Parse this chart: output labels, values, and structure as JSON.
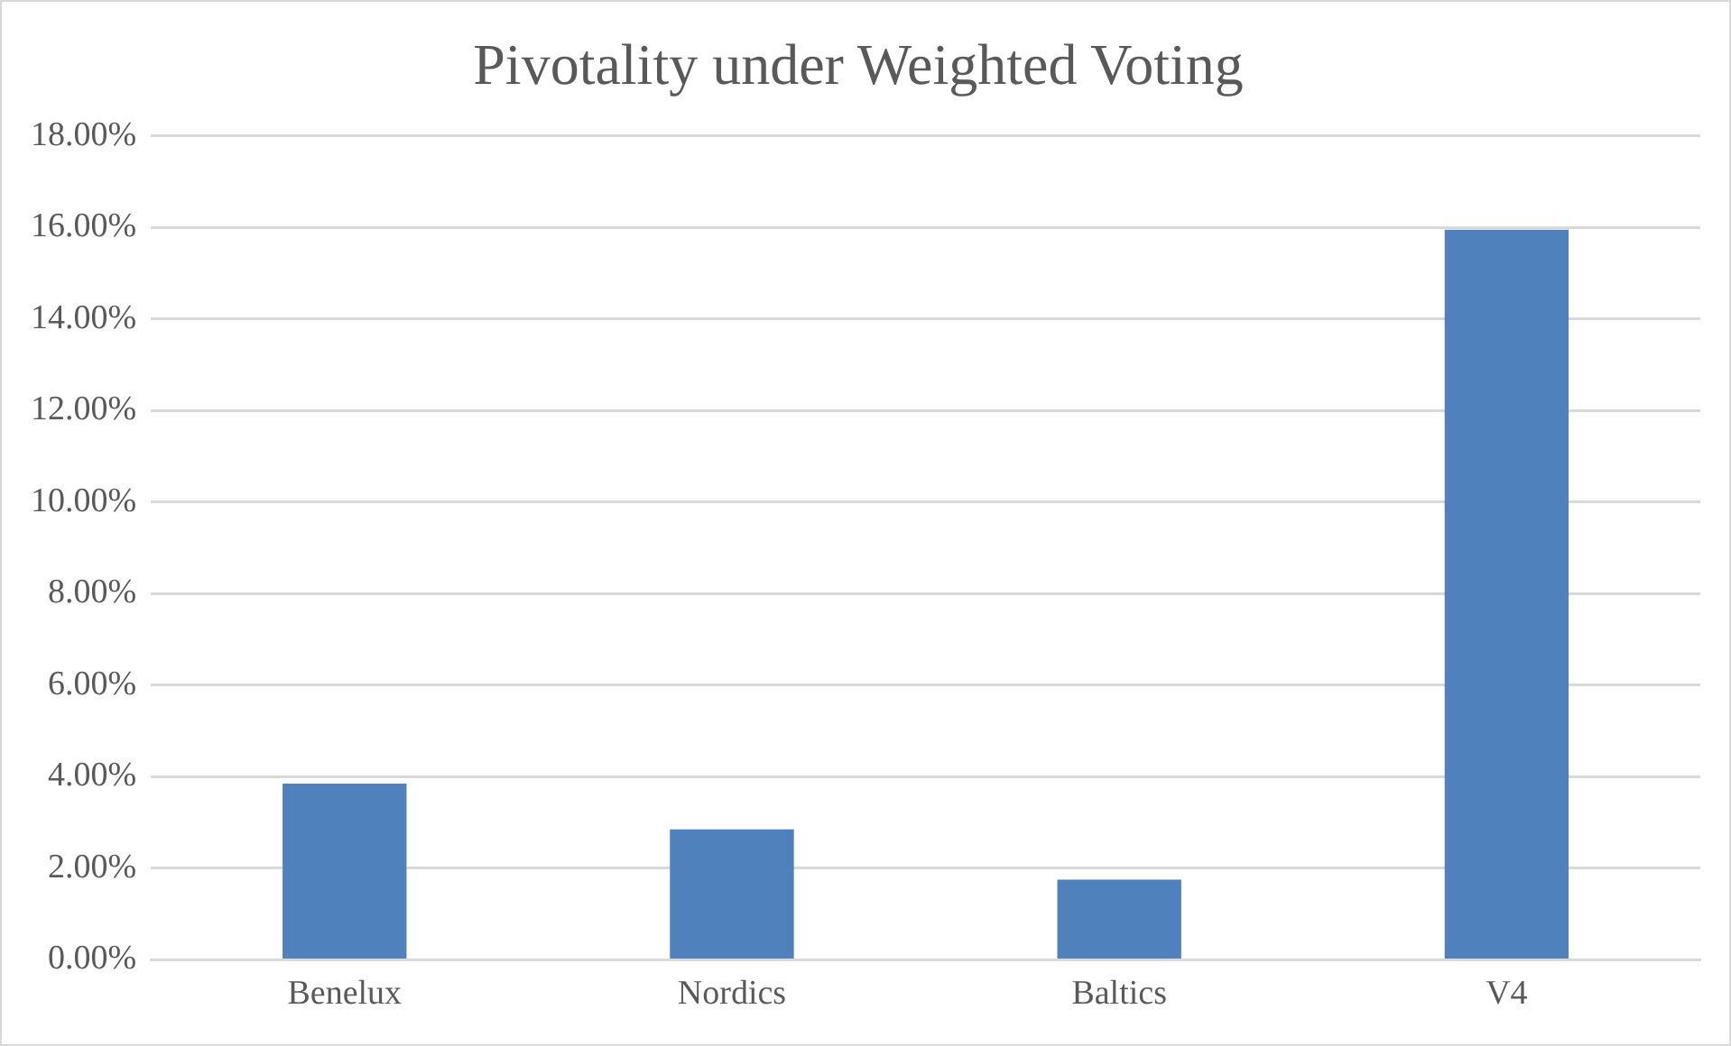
{
  "chart_data": {
    "type": "bar",
    "title": "Pivotality under Weighted Voting",
    "categories": [
      "Benelux",
      "Nordics",
      "Baltics",
      "V4"
    ],
    "values": [
      3.85,
      2.85,
      1.75,
      15.95
    ],
    "color": "#4f81bd",
    "ylim": [
      0,
      18
    ],
    "yticks": [
      {
        "value": 0,
        "label": "0.00%"
      },
      {
        "value": 2,
        "label": "2.00%"
      },
      {
        "value": 4,
        "label": "4.00%"
      },
      {
        "value": 6,
        "label": "6.00%"
      },
      {
        "value": 8,
        "label": "8.00%"
      },
      {
        "value": 10,
        "label": "10.00%"
      },
      {
        "value": 12,
        "label": "12.00%"
      },
      {
        "value": 14,
        "label": "14.00%"
      },
      {
        "value": 16,
        "label": "16.00%"
      },
      {
        "value": 18,
        "label": "18.00%"
      }
    ],
    "grid": "y"
  }
}
